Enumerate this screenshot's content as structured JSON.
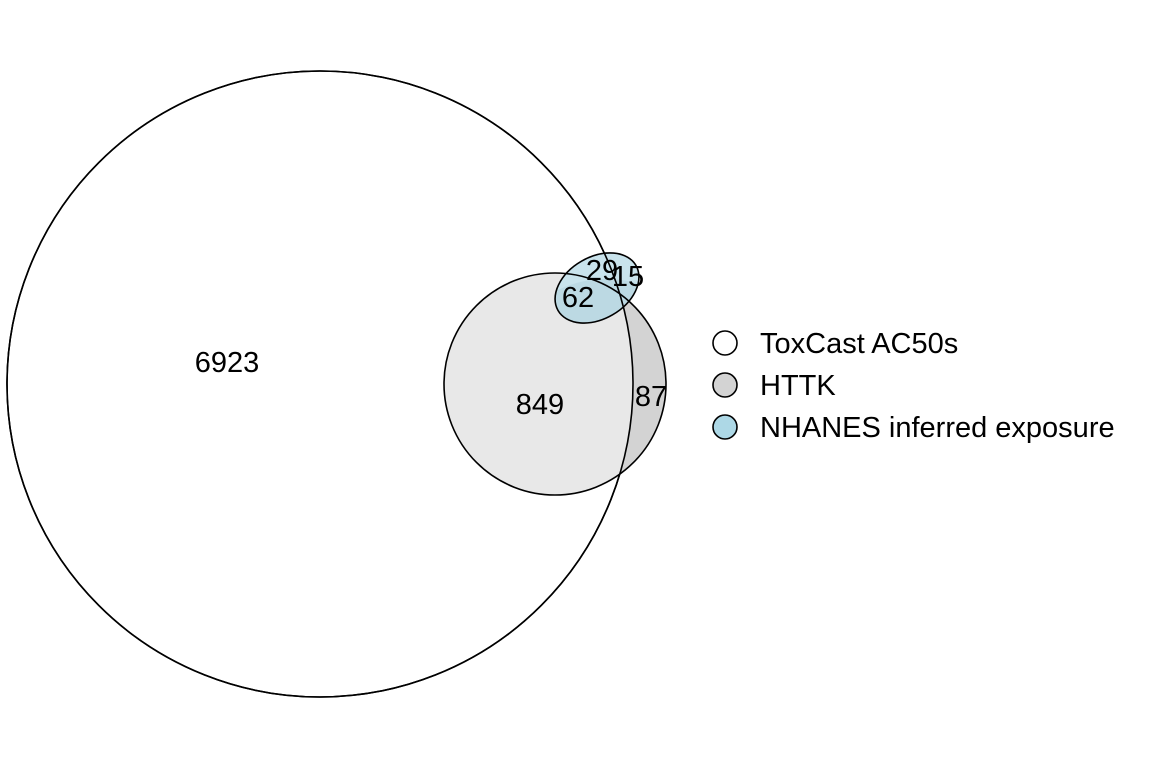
{
  "sets": [
    {
      "name": "ToxCast AC50s",
      "color": "#ffffff"
    },
    {
      "name": "HTTK",
      "color": "#d3d3d3"
    },
    {
      "name": "NHANES inferred exposure",
      "color": "#add8e6"
    }
  ],
  "regions": {
    "toxcast_only": "6923",
    "toxcast_httk": "849",
    "httk_only": "87",
    "toxcast_httk_nhanes": "62",
    "nhanes_part_a": "29",
    "nhanes_part_b": "15"
  },
  "legend": {
    "item0": "ToxCast AC50s",
    "item1": "HTTK",
    "item2": "NHANES inferred exposure"
  }
}
